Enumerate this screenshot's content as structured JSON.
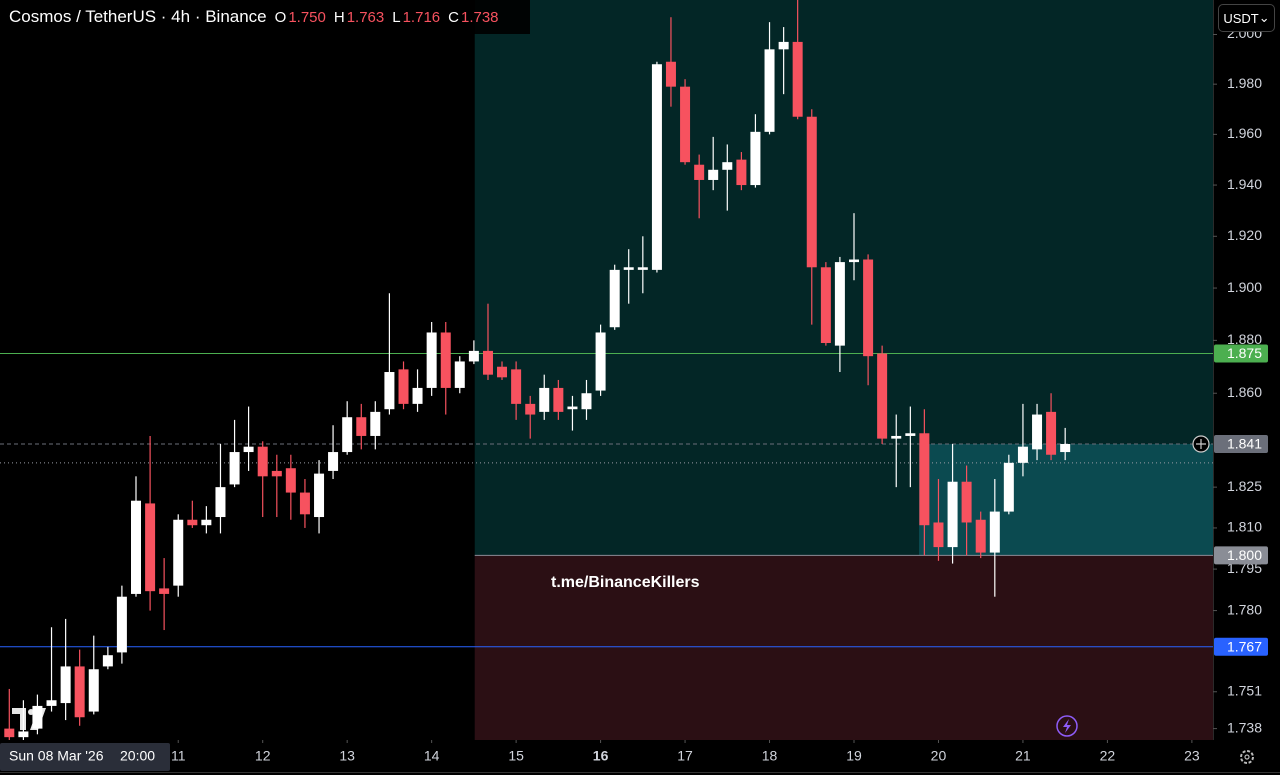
{
  "chart_data": {
    "type": "candlestick",
    "title": "Cosmos / TetherUS · 4h · Binance",
    "ohlc_legend": [
      {
        "key": "O",
        "value": "1.750"
      },
      {
        "key": "H",
        "value": "1.763"
      },
      {
        "key": "L",
        "value": "1.716"
      },
      {
        "key": "C",
        "value": "1.738"
      }
    ],
    "currency_button": "USDT",
    "watermark": "t.me/BinanceKillers",
    "crosshair_time": [
      "Sun 08 Mar '26",
      "20:00"
    ],
    "log_scale": true,
    "grid": false,
    "up_color": "#ffffff",
    "down_color": "#f7525f",
    "x": [
      9,
      9.167,
      9.333,
      9.5,
      9.667,
      9.833,
      10,
      10.167,
      10.333,
      10.5,
      10.667,
      10.833,
      11,
      11.167,
      11.333,
      11.5,
      11.667,
      11.833,
      12,
      12.167,
      12.333,
      12.5,
      12.667,
      12.833,
      13,
      13.167,
      13.333,
      13.5,
      13.667,
      13.833,
      14,
      14.167,
      14.333,
      14.5,
      14.667,
      14.833,
      15,
      15.167,
      15.333,
      15.5,
      15.667,
      15.833,
      16,
      16.167,
      16.333,
      16.5,
      16.667,
      16.833,
      17,
      17.167,
      17.333,
      17.5,
      17.667,
      17.833,
      18,
      18.167,
      18.333,
      18.5,
      18.667,
      18.833,
      19,
      19.167,
      19.333,
      19.5,
      19.667,
      19.833,
      20,
      20.167,
      20.333,
      20.5,
      20.667,
      20.833,
      21,
      21.167,
      21.333,
      21.5
    ],
    "open": [
      1.738,
      1.735,
      1.738,
      1.746,
      1.747,
      1.76,
      1.744,
      1.76,
      1.765,
      1.786,
      1.819,
      1.788,
      1.789,
      1.813,
      1.811,
      1.814,
      1.826,
      1.838,
      1.84,
      1.831,
      1.832,
      1.823,
      1.814,
      1.831,
      1.838,
      1.851,
      1.844,
      1.854,
      1.869,
      1.856,
      1.862,
      1.883,
      1.862,
      1.872,
      1.876,
      1.87,
      1.869,
      1.856,
      1.853,
      1.862,
      1.854,
      1.854,
      1.861,
      1.885,
      1.907,
      1.907,
      1.907,
      1.989,
      1.979,
      1.948,
      1.942,
      1.946,
      1.95,
      1.94,
      1.961,
      1.994,
      1.997,
      1.967,
      1.908,
      1.878,
      1.91,
      1.911,
      1.875,
      1.843,
      1.844,
      1.845,
      1.812,
      1.803,
      1.827,
      1.813,
      1.801,
      1.816,
      1.834,
      1.839,
      1.853,
      1.838
    ],
    "high": [
      1.752,
      1.748,
      1.75,
      1.774,
      1.777,
      1.766,
      1.771,
      1.767,
      1.789,
      1.829,
      1.844,
      1.799,
      1.815,
      1.82,
      1.818,
      1.841,
      1.85,
      1.855,
      1.842,
      1.837,
      1.837,
      1.828,
      1.835,
      1.848,
      1.857,
      1.856,
      1.857,
      1.898,
      1.872,
      1.869,
      1.887,
      1.887,
      1.874,
      1.88,
      1.894,
      1.872,
      1.872,
      1.859,
      1.867,
      1.865,
      1.859,
      1.865,
      1.886,
      1.909,
      1.915,
      1.92,
      1.989,
      2.007,
      1.982,
      1.952,
      1.959,
      1.956,
      1.953,
      1.968,
      2.005,
      2.003,
      2.014,
      1.97,
      1.91,
      1.912,
      1.929,
      1.913,
      1.878,
      1.852,
      1.855,
      1.854,
      1.828,
      1.841,
      1.833,
      1.816,
      1.828,
      1.837,
      1.856,
      1.856,
      1.86,
      1.847
    ],
    "low": [
      1.734,
      1.734,
      1.736,
      1.744,
      1.741,
      1.739,
      1.743,
      1.759,
      1.761,
      1.785,
      1.78,
      1.773,
      1.785,
      1.81,
      1.808,
      1.808,
      1.825,
      1.831,
      1.814,
      1.814,
      1.813,
      1.81,
      1.808,
      1.828,
      1.837,
      1.839,
      1.839,
      1.852,
      1.854,
      1.853,
      1.859,
      1.852,
      1.86,
      1.871,
      1.865,
      1.865,
      1.85,
      1.843,
      1.85,
      1.85,
      1.846,
      1.85,
      1.859,
      1.884,
      1.894,
      1.898,
      1.906,
      1.971,
      1.948,
      1.927,
      1.938,
      1.93,
      1.938,
      1.939,
      1.96,
      1.976,
      1.966,
      1.886,
      1.878,
      1.868,
      1.903,
      1.863,
      1.841,
      1.825,
      1.825,
      1.8,
      1.798,
      1.797,
      1.8,
      1.799,
      1.785,
      1.815,
      1.829,
      1.835,
      1.835,
      1.835
    ],
    "close": [
      1.735,
      1.737,
      1.746,
      1.748,
      1.76,
      1.742,
      1.759,
      1.764,
      1.785,
      1.82,
      1.787,
      1.786,
      1.813,
      1.811,
      1.813,
      1.825,
      1.838,
      1.84,
      1.829,
      1.829,
      1.823,
      1.815,
      1.83,
      1.838,
      1.851,
      1.844,
      1.853,
      1.868,
      1.856,
      1.862,
      1.883,
      1.862,
      1.872,
      1.876,
      1.867,
      1.866,
      1.856,
      1.852,
      1.862,
      1.853,
      1.855,
      1.86,
      1.883,
      1.907,
      1.908,
      1.908,
      1.988,
      1.979,
      1.949,
      1.942,
      1.946,
      1.949,
      1.94,
      1.961,
      1.994,
      1.997,
      1.967,
      1.908,
      1.879,
      1.91,
      1.911,
      1.874,
      1.843,
      1.844,
      1.845,
      1.811,
      1.803,
      1.827,
      1.812,
      1.801,
      1.816,
      1.834,
      1.84,
      1.852,
      1.837,
      1.841
    ],
    "xlim": [
      8.89,
      23.25
    ],
    "xticks": [
      11,
      12,
      13,
      14,
      15,
      16,
      17,
      18,
      19,
      20,
      21,
      22,
      23
    ],
    "emphasized_xtick": 16,
    "ylim": [
      1.734,
      2.014
    ],
    "yticks": [
      {
        "value": 2.0,
        "label": "2.000"
      },
      {
        "value": 1.98,
        "label": "1.980"
      },
      {
        "value": 1.96,
        "label": "1.960"
      },
      {
        "value": 1.94,
        "label": "1.940"
      },
      {
        "value": 1.92,
        "label": "1.920"
      },
      {
        "value": 1.9,
        "label": "1.900"
      },
      {
        "value": 1.88,
        "label": "1.880"
      },
      {
        "value": 1.86,
        "label": "1.860"
      },
      {
        "value": 1.825,
        "label": "1.825"
      },
      {
        "value": 1.81,
        "label": "1.810"
      },
      {
        "value": 1.795,
        "label": "1.795"
      },
      {
        "value": 1.78,
        "label": "1.780"
      },
      {
        "value": 1.751,
        "label": "1.751"
      },
      {
        "value": 1.738,
        "label": "1.738"
      }
    ],
    "zones": [
      {
        "from": 14.51,
        "low": 1.8,
        "high": 2.014,
        "color": "#032626"
      },
      {
        "from": 14.51,
        "low": 1.734,
        "high": 1.8,
        "color": "#2b0f14"
      },
      {
        "from": 19.77,
        "low": 1.8,
        "high": 1.841,
        "color": "#0b4a50"
      }
    ],
    "levels": [
      {
        "value": 1.875,
        "label": "1.875",
        "color": "#4caf50",
        "style": "solid"
      },
      {
        "value": 1.841,
        "label": "1.841",
        "color": "#6b6f7a",
        "style": "dashed"
      },
      {
        "value": 1.8,
        "label": "1.800",
        "color": "#8a8d96",
        "style": "none"
      },
      {
        "value": 1.767,
        "label": "1.767",
        "color": "#2962ff",
        "style": "solid"
      },
      {
        "value": 1.834,
        "color": "#9a9da6",
        "style": "dotted"
      }
    ]
  }
}
